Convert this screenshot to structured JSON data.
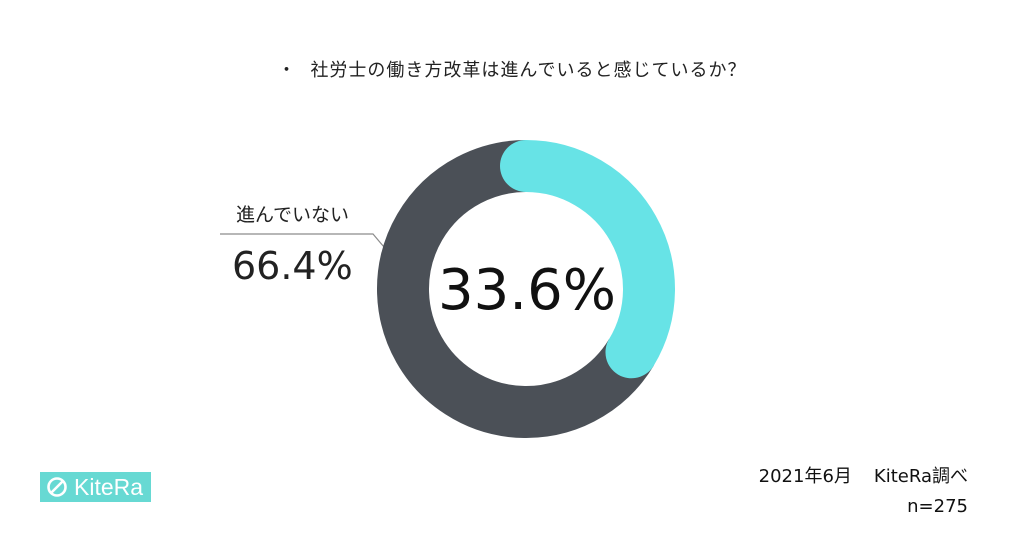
{
  "title": "社労士の働き方改革は進んでいると感じているか？",
  "title_bullet": "・",
  "chart_data": {
    "type": "pie",
    "title": "社労士の働き方改革は進んでいると感じているか？",
    "donut": true,
    "slices": [
      {
        "label": "",
        "value": 33.6,
        "display": "33.6%",
        "color": "#67e3e6"
      },
      {
        "label": "進んでいない",
        "value": 66.4,
        "display": "66.4%",
        "color": "#4b5057"
      }
    ]
  },
  "logo": {
    "text": "KiteRa",
    "color": "#67d9d3"
  },
  "source": {
    "date": "2021年6月",
    "org": "KiteRa調べ",
    "n": "n=275"
  }
}
